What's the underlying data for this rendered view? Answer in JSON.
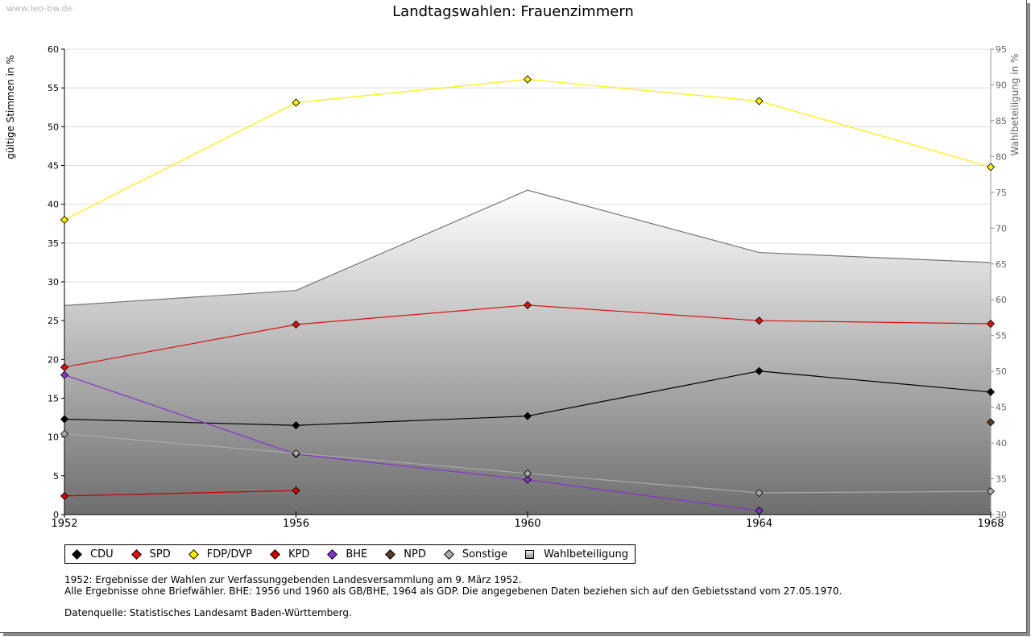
{
  "watermark": "www.leo-bw.de",
  "chart_data": {
    "type": "line",
    "title": "Landtagswahlen: Frauenzimmern",
    "ylabel": "gültige Stimmen in %",
    "ylabel_right": "Wahlbeteiligung in %",
    "x": [
      1952,
      1956,
      1960,
      1964,
      1968
    ],
    "x_ticks": [
      "1952",
      "1956",
      "1960",
      "1964",
      "1968"
    ],
    "ylim": [
      0,
      60
    ],
    "y_ticks": [
      "0",
      "5",
      "10",
      "15",
      "20",
      "25",
      "30",
      "35",
      "40",
      "45",
      "50",
      "55",
      "60"
    ],
    "ylim_right": [
      30,
      95
    ],
    "y_ticks_right": [
      "30",
      "35",
      "40",
      "45",
      "50",
      "55",
      "60",
      "65",
      "70",
      "75",
      "80",
      "85",
      "90",
      "95"
    ],
    "grid": true,
    "legend_position": "bottom-left",
    "series": [
      {
        "name": "CDU",
        "color": "#000000",
        "values": [
          12.3,
          11.5,
          12.7,
          18.5,
          15.8
        ]
      },
      {
        "name": "SPD",
        "color": "#dd1111",
        "values": [
          19.0,
          24.5,
          27.0,
          25.0,
          24.6
        ]
      },
      {
        "name": "FDP/DVP",
        "color": "#ffee00",
        "values": [
          38.0,
          53.1,
          56.1,
          53.3,
          44.8
        ]
      },
      {
        "name": "KPD",
        "color": "#cc0000",
        "values": [
          2.4,
          3.1,
          null,
          null,
          null
        ]
      },
      {
        "name": "BHE",
        "color": "#8833cc",
        "values": [
          18.0,
          7.8,
          4.5,
          0.5,
          null
        ]
      },
      {
        "name": "NPD",
        "color": "#5a3a22",
        "values": [
          null,
          null,
          null,
          null,
          11.9
        ]
      },
      {
        "name": "Sonstige",
        "color": "#aaaaaa",
        "values": [
          10.4,
          7.9,
          5.3,
          2.8,
          3.0
        ]
      }
    ],
    "area": {
      "name": "Wahlbeteiligung",
      "axis": "right",
      "values": [
        59.2,
        61.3,
        75.3,
        66.6,
        65.2
      ]
    }
  },
  "notes": {
    "line1": "1952: Ergebnisse der Wahlen zur Verfassunggebenden Landesversammlung am 9. März 1952.",
    "line2": "Alle Ergebnisse ohne Briefwähler. BHE: 1956 und 1960 als GB/BHE, 1964 als GDP. Die angegebenen Daten beziehen sich auf den Gebietsstand vom 27.05.1970.",
    "source": "Datenquelle: Statistisches Landesamt Baden-Württemberg."
  }
}
